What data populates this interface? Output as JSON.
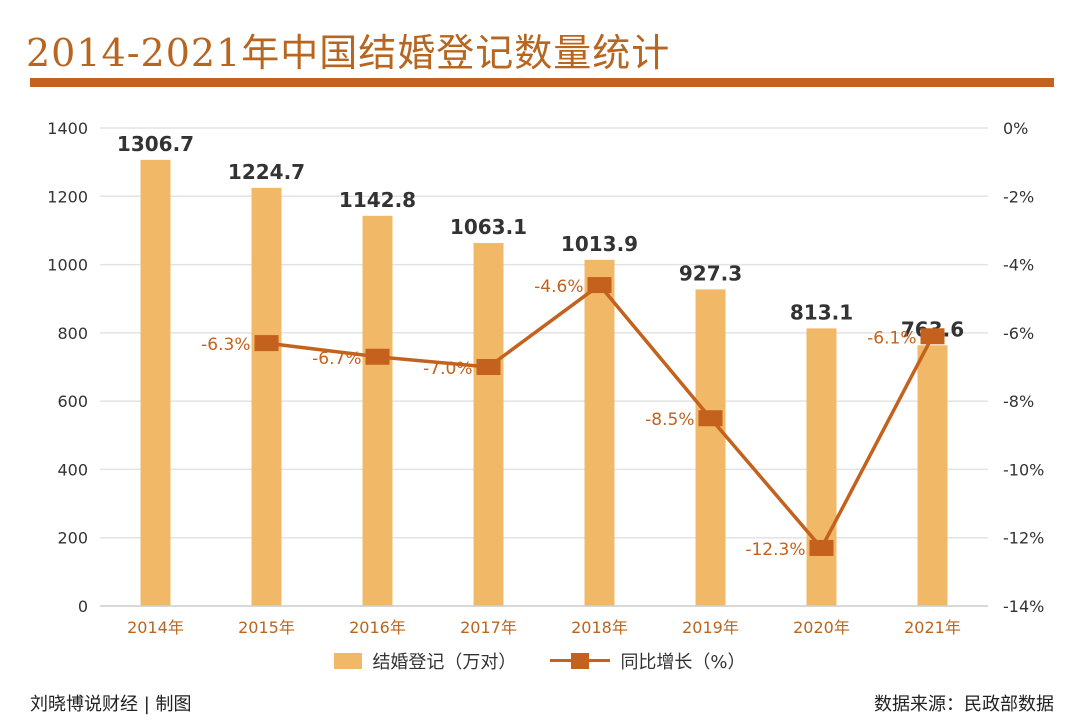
{
  "header": {
    "title": "2014-2021年中国结婚登记数量统计"
  },
  "footer": {
    "credit": "刘晓博说财经 | 制图",
    "source": "数据来源：民政部数据"
  },
  "colors": {
    "bar": "#f0b867",
    "line": "#c4621d",
    "accent": "#b8651f",
    "grid": "#e3e3e3"
  },
  "chart_data": {
    "type": "bar",
    "categories": [
      "2014年",
      "2015年",
      "2016年",
      "2017年",
      "2018年",
      "2019年",
      "2020年",
      "2021年"
    ],
    "series": [
      {
        "name": "结婚登记（万对）",
        "type": "bar",
        "axis": "left",
        "values": [
          1306.7,
          1224.7,
          1142.8,
          1063.1,
          1013.9,
          927.3,
          813.1,
          763.6
        ],
        "labels": [
          "1306.7",
          "1224.7",
          "1142.8",
          "1063.1",
          "1013.9",
          "927.3",
          "813.1",
          "763.6"
        ]
      },
      {
        "name": "同比增长（%）",
        "type": "line",
        "axis": "right",
        "x": [
          "2015年",
          "2016年",
          "2017年",
          "2018年",
          "2019年",
          "2020年",
          "2021年"
        ],
        "values": [
          -6.3,
          -6.7,
          -7.0,
          -4.6,
          -8.5,
          -12.3,
          -6.1
        ],
        "labels": [
          "-6.3%",
          "-6.7%",
          "-7.0%",
          "-4.6%",
          "-8.5%",
          "-12.3%",
          "-6.1%"
        ]
      }
    ],
    "y_left": {
      "range": [
        0,
        1400
      ],
      "ticks": [
        0,
        200,
        400,
        600,
        800,
        1000,
        1200,
        1400
      ],
      "tick_labels": [
        "0",
        "200",
        "400",
        "600",
        "800",
        "1000",
        "1200",
        "1400"
      ]
    },
    "y_right": {
      "range": [
        -14,
        0
      ],
      "ticks": [
        0,
        -2,
        -4,
        -6,
        -8,
        -10,
        -12,
        -14
      ],
      "tick_labels": [
        "0%",
        "-2%",
        "-4%",
        "-6%",
        "-8%",
        "-10%",
        "-12%",
        "-14%"
      ]
    },
    "grid": true,
    "legend": "bottom-center"
  }
}
